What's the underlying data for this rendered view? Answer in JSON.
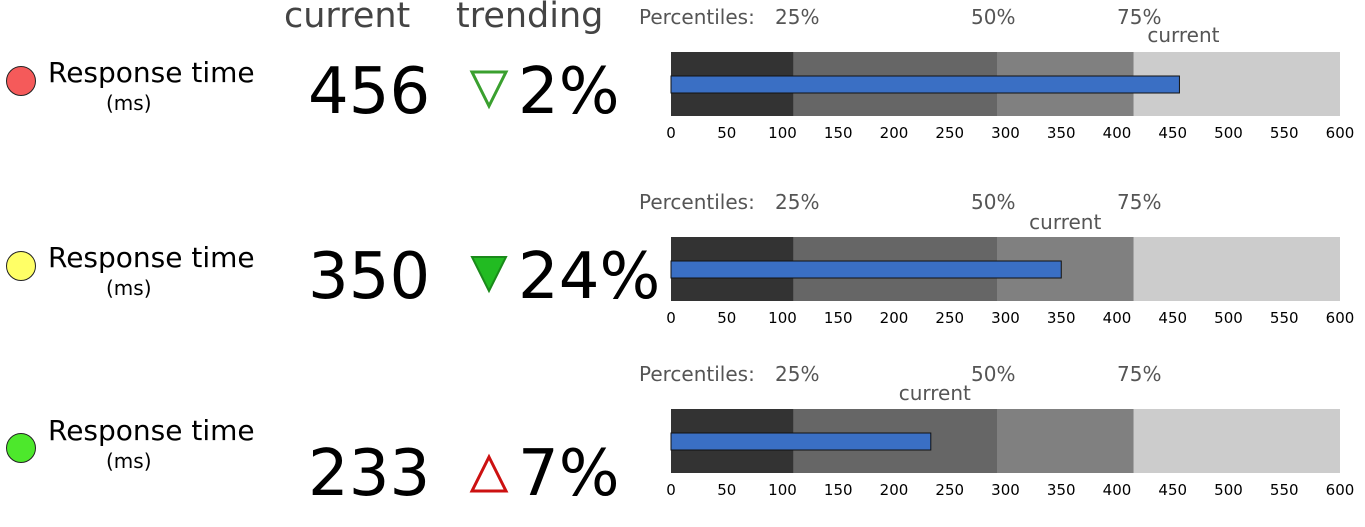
{
  "header": {
    "current_label": "current",
    "trending_label": "trending"
  },
  "chart_data": {
    "type": "bullet",
    "axis": {
      "min": 0,
      "max": 600,
      "ticks": [
        0,
        50,
        100,
        150,
        200,
        250,
        300,
        350,
        400,
        450,
        500,
        550,
        600
      ]
    },
    "percentile_prefix": "Percentiles:",
    "percentiles": [
      {
        "label": "25%",
        "value": 110
      },
      {
        "label": "50%",
        "value": 293
      },
      {
        "label": "75%",
        "value": 415
      }
    ],
    "current_marker_label": "current",
    "band_colors": [
      "#333333",
      "#666666",
      "#808080",
      "#cccccc"
    ],
    "bar_color": "#3a6fc4",
    "rows": [
      {
        "metric": "Response time",
        "unit": "(ms)",
        "status_color": "#f55a5a",
        "current": 456,
        "trend_value": "2%",
        "trend_icon": "triangle-down-outline-icon",
        "trend_color": "#3aa02f"
      },
      {
        "metric": "Response time",
        "unit": "(ms)",
        "status_color": "#ffff66",
        "current": 350,
        "trend_value": "24%",
        "trend_icon": "triangle-down-filled-icon",
        "trend_color": "#22bb22"
      },
      {
        "metric": "Response time",
        "unit": "(ms)",
        "status_color": "#4de82c",
        "current": 233,
        "trend_value": "7%",
        "trend_icon": "triangle-up-outline-icon",
        "trend_color": "#cc1111"
      }
    ]
  }
}
